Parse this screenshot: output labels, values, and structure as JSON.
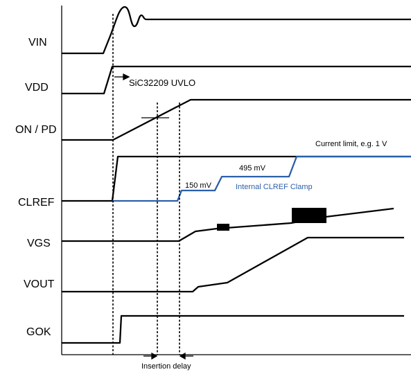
{
  "signals": {
    "vin": "VIN",
    "vdd": "VDD",
    "on_pd": "ON / PD",
    "clref": "CLREF",
    "vgs": "VGS",
    "vout": "VOUT",
    "gok": "GOK"
  },
  "annotations": {
    "uvlo": "SiC32209 UVLO",
    "current_limit": "Current limit, e.g. 1 V",
    "clamp_495": "495 mV",
    "clamp_150": "150 mV",
    "internal_clamp": "Internal CLREF Clamp",
    "insertion_delay": "Insertion delay"
  },
  "colors": {
    "trace": "#000000",
    "clamp": "#2a5fa8"
  }
}
